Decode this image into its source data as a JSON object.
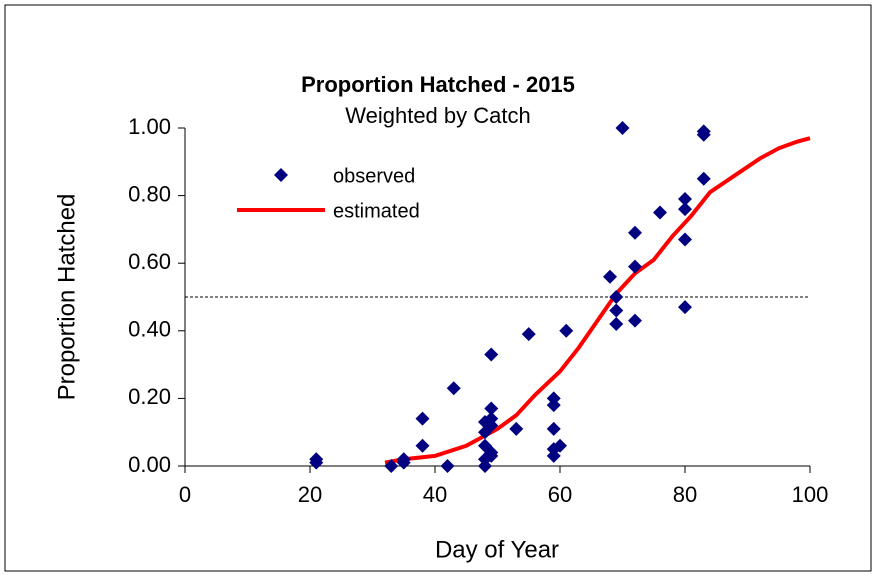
{
  "chart_data": {
    "type": "scatter",
    "title": "Proportion Hatched - 2015",
    "subtitle": "Weighted by Catch",
    "x_label": "Day of Year",
    "y_label": "Proportion Hatched",
    "xlim": [
      0,
      100
    ],
    "xticks": [
      0,
      20,
      40,
      60,
      80,
      100
    ],
    "ylim": [
      0,
      1
    ],
    "yticks": [
      {
        "value": 0,
        "label": "0.00"
      },
      {
        "value": 0.2,
        "label": "0.20"
      },
      {
        "value": 0.4,
        "label": "0.40"
      },
      {
        "value": 0.6,
        "label": "0.60"
      },
      {
        "value": 0.8,
        "label": "0.80"
      },
      {
        "value": 1,
        "label": "1.00"
      }
    ],
    "reference_line": 0.5,
    "legend": "upper left",
    "series": [
      {
        "name": "observed",
        "type": "scatter",
        "color": "#000080",
        "x": [
          21,
          21,
          33,
          35,
          35,
          38,
          38,
          42,
          43,
          48,
          48,
          48,
          48,
          48,
          49,
          49,
          49,
          49,
          49,
          49,
          53,
          55,
          59,
          59,
          59,
          59,
          59,
          60,
          61,
          68,
          69,
          69,
          69,
          70,
          72,
          72,
          72,
          76,
          80,
          80,
          80,
          80,
          83,
          83,
          83
        ],
        "values": [
          0.01,
          0.02,
          0.0,
          0.01,
          0.02,
          0.06,
          0.14,
          0.0,
          0.23,
          0.0,
          0.02,
          0.06,
          0.1,
          0.13,
          0.03,
          0.04,
          0.12,
          0.14,
          0.17,
          0.33,
          0.11,
          0.39,
          0.03,
          0.05,
          0.11,
          0.18,
          0.2,
          0.06,
          0.4,
          0.56,
          0.42,
          0.46,
          0.5,
          1.0,
          0.43,
          0.59,
          0.69,
          0.75,
          0.47,
          0.67,
          0.76,
          0.79,
          0.85,
          0.98,
          0.99
        ]
      },
      {
        "name": "estimated",
        "type": "line",
        "color": "#ff0000",
        "x": [
          32,
          35,
          40,
          45,
          47,
          50,
          53,
          56,
          60,
          63,
          66,
          69,
          72,
          75,
          78,
          81,
          84,
          88,
          92,
          95,
          98,
          100
        ],
        "values": [
          0.01,
          0.02,
          0.03,
          0.06,
          0.08,
          0.11,
          0.15,
          0.21,
          0.28,
          0.35,
          0.43,
          0.51,
          0.57,
          0.61,
          0.68,
          0.74,
          0.81,
          0.86,
          0.91,
          0.94,
          0.96,
          0.97
        ]
      }
    ]
  }
}
